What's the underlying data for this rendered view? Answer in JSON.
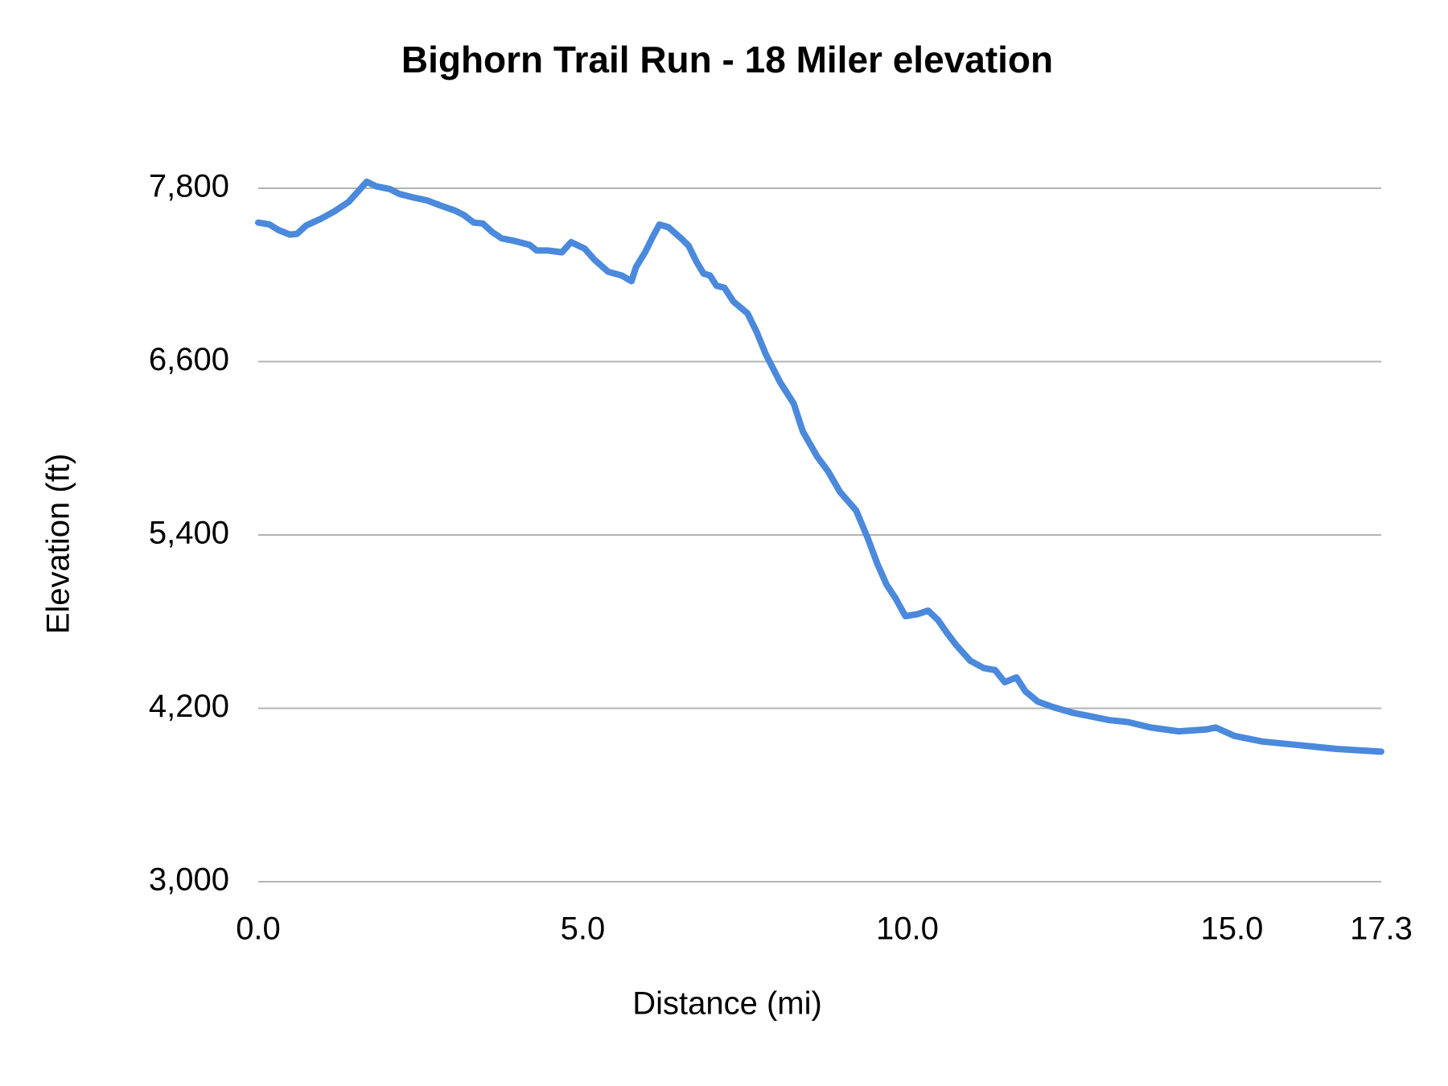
{
  "chart_data": {
    "type": "line",
    "title": "Bighorn Trail Run - 18 Miler elevation",
    "x_label": "Distance (mi)",
    "y_label": "Elevation (ft)",
    "x": [
      0,
      0.17,
      0.31,
      0.49,
      0.6,
      0.74,
      0.96,
      1.17,
      1.39,
      1.53,
      1.67,
      1.82,
      2.03,
      2.17,
      2.39,
      2.6,
      2.82,
      3.03,
      3.17,
      3.32,
      3.46,
      3.6,
      3.75,
      3.96,
      4.18,
      4.29,
      4.46,
      4.68,
      4.82,
      5.03,
      5.18,
      5.39,
      5.6,
      5.75,
      5.82,
      5.96,
      6.08,
      6.18,
      6.32,
      6.53,
      6.63,
      6.75,
      6.86,
      6.96,
      7.06,
      7.18,
      7.32,
      7.54,
      7.68,
      7.82,
      8.04,
      8.25,
      8.39,
      8.61,
      8.78,
      8.96,
      9.21,
      9.39,
      9.54,
      9.68,
      9.82,
      9.97,
      10.15,
      10.32,
      10.47,
      10.61,
      10.75,
      10.97,
      11.18,
      11.35,
      11.5,
      11.68,
      11.82,
      12.01,
      12.25,
      12.54,
      12.83,
      13.11,
      13.4,
      13.75,
      14.18,
      14.61,
      14.75,
      15.04,
      15.47,
      16.04,
      16.61,
      17.3
    ],
    "values": [
      7562,
      7550,
      7511,
      7479,
      7485,
      7543,
      7588,
      7639,
      7704,
      7774,
      7845,
      7813,
      7794,
      7761,
      7736,
      7716,
      7678,
      7646,
      7614,
      7562,
      7556,
      7498,
      7453,
      7434,
      7408,
      7369,
      7369,
      7357,
      7427,
      7382,
      7305,
      7222,
      7196,
      7157,
      7254,
      7357,
      7466,
      7549,
      7530,
      7447,
      7402,
      7292,
      7209,
      7196,
      7125,
      7112,
      7016,
      6933,
      6804,
      6650,
      6457,
      6309,
      6116,
      5943,
      5840,
      5699,
      5570,
      5378,
      5198,
      5056,
      4960,
      4838,
      4851,
      4876,
      4812,
      4722,
      4639,
      4529,
      4478,
      4465,
      4381,
      4414,
      4317,
      4247,
      4208,
      4170,
      4144,
      4118,
      4105,
      4067,
      4041,
      4054,
      4067,
      4009,
      3970,
      3945,
      3919,
      3900
    ],
    "color": "#4a89dc",
    "xlim": [
      0,
      17.3
    ],
    "xticks": [
      {
        "value": 0,
        "label": "0.0"
      },
      {
        "value": 5,
        "label": "5.0"
      },
      {
        "value": 10,
        "label": "10.0"
      },
      {
        "value": 15,
        "label": "15.0"
      },
      {
        "value": 17.3,
        "label": "17.3"
      }
    ],
    "ylim": [
      3000,
      7800
    ],
    "yticks": [
      {
        "value": 3000,
        "label": "3,000"
      },
      {
        "value": 4200,
        "label": "4,200"
      },
      {
        "value": 5400,
        "label": "5,400"
      },
      {
        "value": 6600,
        "label": "6,600"
      },
      {
        "value": 7800,
        "label": "7,800"
      }
    ],
    "grid": true
  }
}
